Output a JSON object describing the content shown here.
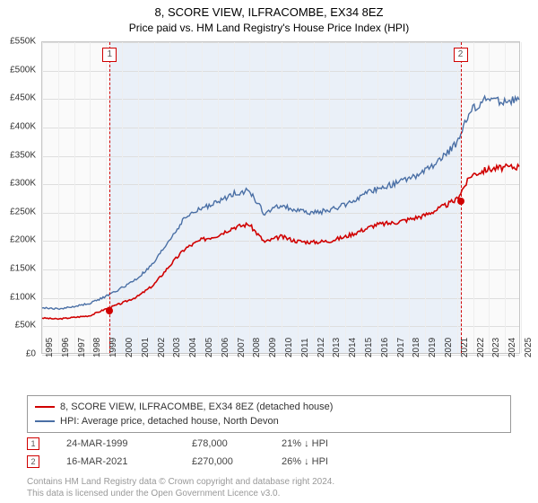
{
  "title": {
    "main": "8, SCORE VIEW, ILFRACOMBE, EX34 8EZ",
    "sub": "Price paid vs. HM Land Registry's House Price Index (HPI)"
  },
  "chart": {
    "type": "line",
    "background_color": "#fafafa",
    "shade_color": "#eaf0f8",
    "grid_color": "#dedede",
    "border_color": "#c6c6c6",
    "y_axis": {
      "min": 0,
      "max": 550,
      "step": 50,
      "prefix": "£",
      "suffix": "K"
    },
    "x_axis": {
      "years": [
        1995,
        1996,
        1997,
        1998,
        1999,
        2000,
        2001,
        2002,
        2003,
        2004,
        2005,
        2006,
        2007,
        2008,
        2009,
        2010,
        2011,
        2012,
        2013,
        2014,
        2015,
        2016,
        2017,
        2018,
        2019,
        2020,
        2021,
        2022,
        2023,
        2024,
        2025
      ]
    },
    "series": [
      {
        "id": "price_paid",
        "label": "8, SCORE VIEW, ILFRACOMBE, EX34 8EZ (detached house)",
        "color": "#d00000",
        "width": 1.6,
        "values": [
          62,
          60,
          63,
          66,
          78,
          88,
          100,
          120,
          154,
          185,
          200,
          208,
          222,
          228,
          196,
          206,
          198,
          196,
          198,
          205,
          216,
          227,
          230,
          236,
          243,
          256,
          270,
          315,
          325,
          328,
          330
        ]
      },
      {
        "id": "hpi",
        "label": "HPI: Average price, detached house, North Devon",
        "color": "#4a6fa5",
        "width": 1.4,
        "values": [
          80,
          78,
          82,
          88,
          100,
          115,
          132,
          158,
          200,
          240,
          256,
          266,
          282,
          288,
          246,
          262,
          252,
          248,
          252,
          262,
          276,
          290,
          298,
          308,
          320,
          340,
          370,
          430,
          450,
          445,
          448
        ]
      }
    ],
    "sales": [
      {
        "n": "1",
        "year": 1999.23,
        "value": 78,
        "date": "24-MAR-1999",
        "price": "£78,000",
        "delta": "21% ↓ HPI",
        "marker_color": "#d00000"
      },
      {
        "n": "2",
        "year": 2021.21,
        "value": 270,
        "date": "16-MAR-2021",
        "price": "£270,000",
        "delta": "26% ↓ HPI",
        "marker_color": "#d00000"
      }
    ]
  },
  "attribution": {
    "line1": "Contains HM Land Registry data © Crown copyright and database right 2024.",
    "line2": "This data is licensed under the Open Government Licence v3.0."
  }
}
